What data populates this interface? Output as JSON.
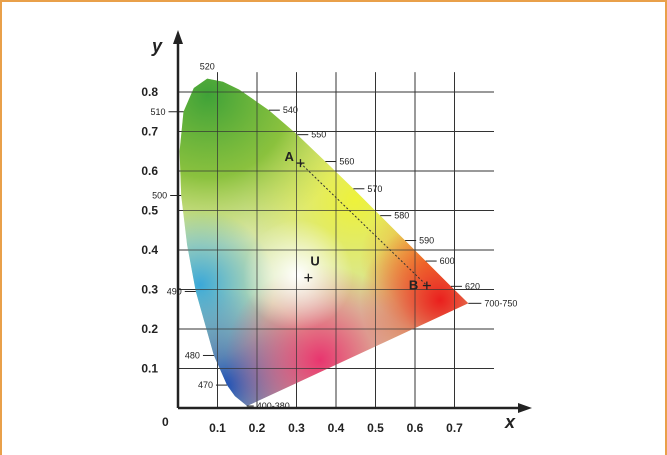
{
  "diagram": {
    "axis_x_label": "x",
    "axis_y_label": "y",
    "origin_label": "0",
    "x_ticks": [
      "0.1",
      "0.2",
      "0.3",
      "0.4",
      "0.5",
      "0.6",
      "0.7"
    ],
    "y_ticks": [
      "0.1",
      "0.2",
      "0.3",
      "0.4",
      "0.5",
      "0.6",
      "0.7",
      "0.8"
    ],
    "wavelengths": [
      {
        "label": "520",
        "x": 0.074,
        "y": 0.834
      },
      {
        "label": "510",
        "x": 0.014,
        "y": 0.75
      },
      {
        "label": "540",
        "x": 0.23,
        "y": 0.754
      },
      {
        "label": "550",
        "x": 0.302,
        "y": 0.692
      },
      {
        "label": "560",
        "x": 0.373,
        "y": 0.624
      },
      {
        "label": "570",
        "x": 0.444,
        "y": 0.555
      },
      {
        "label": "580",
        "x": 0.512,
        "y": 0.487
      },
      {
        "label": "590",
        "x": 0.575,
        "y": 0.424
      },
      {
        "label": "600",
        "x": 0.627,
        "y": 0.372
      },
      {
        "label": "620",
        "x": 0.691,
        "y": 0.308
      },
      {
        "label": "700-750",
        "x": 0.735,
        "y": 0.265
      },
      {
        "label": "500",
        "x": 0.008,
        "y": 0.538
      },
      {
        "label": "490",
        "x": 0.045,
        "y": 0.295
      },
      {
        "label": "480",
        "x": 0.091,
        "y": 0.133
      },
      {
        "label": "470",
        "x": 0.124,
        "y": 0.058
      },
      {
        "label": "400-380",
        "x": 0.174,
        "y": 0.005
      }
    ],
    "points": [
      {
        "label": "A",
        "x": 0.31,
        "y": 0.62
      },
      {
        "label": "B",
        "x": 0.63,
        "y": 0.31
      },
      {
        "label": "U",
        "x": 0.33,
        "y": 0.33
      }
    ],
    "colors": {
      "frame": "#e9a04a",
      "grid": "#333333"
    }
  }
}
